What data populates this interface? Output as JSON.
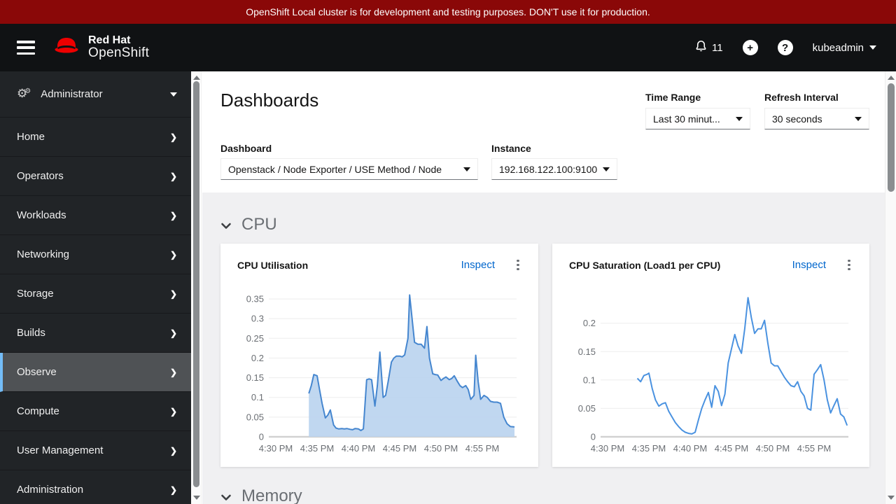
{
  "banner": {
    "text": "OpenShift Local cluster is for development and testing purposes. DON'T use it for production."
  },
  "header": {
    "brand_line1": "Red Hat",
    "brand_line2": "OpenShift",
    "notification_count": "11",
    "plus_glyph": "+",
    "help_glyph": "?",
    "username": "kubeadmin"
  },
  "sidebar": {
    "perspective": {
      "label": "Administrator"
    },
    "items": [
      {
        "label": "Home"
      },
      {
        "label": "Operators"
      },
      {
        "label": "Workloads"
      },
      {
        "label": "Networking"
      },
      {
        "label": "Storage"
      },
      {
        "label": "Builds"
      },
      {
        "label": "Observe",
        "active": true
      },
      {
        "label": "Compute"
      },
      {
        "label": "User Management"
      },
      {
        "label": "Administration"
      }
    ]
  },
  "page": {
    "title": "Dashboards",
    "inspect_label": "Inspect",
    "filters": {
      "time_range_label": "Time Range",
      "time_range_value": "Last 30 minut...",
      "refresh_label": "Refresh Interval",
      "refresh_value": "30 seconds",
      "dashboard_label": "Dashboard",
      "dashboard_value": "Openstack / Node Exporter / USE Method / Node",
      "instance_label": "Instance",
      "instance_value": "192.168.122.100:9100"
    },
    "sections": [
      {
        "title": "CPU"
      },
      {
        "title": "Memory"
      }
    ]
  },
  "chart_data": [
    {
      "type": "area",
      "title": "CPU Utilisation",
      "x_minutes_from": "4:30 PM",
      "x_ticks": [
        "4:30 PM",
        "4:35 PM",
        "4:40 PM",
        "4:45 PM",
        "4:50 PM",
        "4:55 PM"
      ],
      "y_ticks": [
        {
          "v": 0,
          "t": "0"
        },
        {
          "v": 0.05,
          "t": "0.05"
        },
        {
          "v": 0.1,
          "t": "0.1"
        },
        {
          "v": 0.15,
          "t": "0.15"
        },
        {
          "v": 0.2,
          "t": "0.2"
        },
        {
          "v": 0.25,
          "t": "0.25"
        },
        {
          "v": 0.3,
          "t": "0.3"
        },
        {
          "v": 0.35,
          "t": "0.35"
        }
      ],
      "ymax": 0.375,
      "stroke": "#4586cf",
      "fill": "#b9d3ee",
      "series": [
        {
          "name": "cpu-utilisation",
          "points": [
            [
              4.0,
              0.11
            ],
            [
              4.3,
              0.13
            ],
            [
              4.6,
              0.158
            ],
            [
              5.0,
              0.155
            ],
            [
              5.3,
              0.12
            ],
            [
              5.6,
              0.085
            ],
            [
              6.0,
              0.048
            ],
            [
              6.3,
              0.055
            ],
            [
              6.6,
              0.068
            ],
            [
              7.0,
              0.03
            ],
            [
              7.3,
              0.022
            ],
            [
              7.6,
              0.02
            ],
            [
              8.0,
              0.021
            ],
            [
              8.3,
              0.02
            ],
            [
              8.6,
              0.021
            ],
            [
              9.0,
              0.019
            ],
            [
              9.3,
              0.018
            ],
            [
              9.6,
              0.021
            ],
            [
              10.0,
              0.02
            ],
            [
              10.3,
              0.016
            ],
            [
              10.6,
              0.02
            ],
            [
              11.0,
              0.145
            ],
            [
              11.3,
              0.147
            ],
            [
              11.6,
              0.145
            ],
            [
              12.0,
              0.078
            ],
            [
              12.3,
              0.13
            ],
            [
              12.6,
              0.215
            ],
            [
              13.0,
              0.1
            ],
            [
              13.3,
              0.105
            ],
            [
              13.6,
              0.14
            ],
            [
              14.0,
              0.19
            ],
            [
              14.3,
              0.2
            ],
            [
              14.6,
              0.205
            ],
            [
              15.0,
              0.205
            ],
            [
              15.3,
              0.203
            ],
            [
              15.6,
              0.208
            ],
            [
              16.0,
              0.25
            ],
            [
              16.2,
              0.36
            ],
            [
              16.5,
              0.3
            ],
            [
              16.8,
              0.24
            ],
            [
              17.2,
              0.235
            ],
            [
              17.6,
              0.235
            ],
            [
              18.0,
              0.225
            ],
            [
              18.3,
              0.28
            ],
            [
              18.6,
              0.2
            ],
            [
              19.0,
              0.16
            ],
            [
              19.3,
              0.158
            ],
            [
              19.6,
              0.157
            ],
            [
              20.0,
              0.143
            ],
            [
              20.3,
              0.148
            ],
            [
              20.6,
              0.152
            ],
            [
              21.0,
              0.145
            ],
            [
              21.3,
              0.148
            ],
            [
              21.6,
              0.155
            ],
            [
              22.0,
              0.14
            ],
            [
              22.3,
              0.13
            ],
            [
              22.6,
              0.125
            ],
            [
              23.0,
              0.13
            ],
            [
              23.3,
              0.12
            ],
            [
              23.6,
              0.095
            ],
            [
              24.0,
              0.105
            ],
            [
              24.2,
              0.207
            ],
            [
              24.5,
              0.14
            ],
            [
              24.8,
              0.095
            ],
            [
              25.2,
              0.105
            ],
            [
              25.6,
              0.1
            ],
            [
              26.0,
              0.09
            ],
            [
              26.4,
              0.088
            ],
            [
              26.8,
              0.088
            ],
            [
              27.2,
              0.085
            ],
            [
              27.6,
              0.05
            ],
            [
              28.0,
              0.033
            ],
            [
              28.4,
              0.026
            ],
            [
              28.9,
              0.025
            ]
          ]
        }
      ]
    },
    {
      "type": "line",
      "title": "CPU Saturation (Load1 per CPU)",
      "x_minutes_from": "4:30 PM",
      "x_ticks": [
        "4:30 PM",
        "4:35 PM",
        "4:40 PM",
        "4:45 PM",
        "4:50 PM",
        "4:55 PM"
      ],
      "y_ticks": [
        {
          "v": 0,
          "t": "0"
        },
        {
          "v": 0.05,
          "t": "0.05"
        },
        {
          "v": 0.1,
          "t": "0.1"
        },
        {
          "v": 0.15,
          "t": "0.15"
        },
        {
          "v": 0.2,
          "t": "0.2"
        }
      ],
      "ymax": 0.26,
      "stroke": "#4a92e0",
      "fill": "none",
      "series": [
        {
          "name": "cpu-saturation-load1-per-cpu",
          "points": [
            [
              3.6,
              0.103
            ],
            [
              4.0,
              0.097
            ],
            [
              4.4,
              0.108
            ],
            [
              4.8,
              0.11
            ],
            [
              5.0,
              0.112
            ],
            [
              5.4,
              0.085
            ],
            [
              5.8,
              0.065
            ],
            [
              6.2,
              0.054
            ],
            [
              6.6,
              0.058
            ],
            [
              7.0,
              0.06
            ],
            [
              7.4,
              0.045
            ],
            [
              7.8,
              0.035
            ],
            [
              8.2,
              0.025
            ],
            [
              8.6,
              0.018
            ],
            [
              9.0,
              0.012
            ],
            [
              9.4,
              0.008
            ],
            [
              9.8,
              0.006
            ],
            [
              10.2,
              0.005
            ],
            [
              10.6,
              0.008
            ],
            [
              11.0,
              0.03
            ],
            [
              11.4,
              0.05
            ],
            [
              11.8,
              0.065
            ],
            [
              12.2,
              0.078
            ],
            [
              12.6,
              0.052
            ],
            [
              13.0,
              0.09
            ],
            [
              13.4,
              0.08
            ],
            [
              13.8,
              0.055
            ],
            [
              14.2,
              0.075
            ],
            [
              14.6,
              0.13
            ],
            [
              15.0,
              0.155
            ],
            [
              15.4,
              0.18
            ],
            [
              15.8,
              0.16
            ],
            [
              16.2,
              0.147
            ],
            [
              16.6,
              0.19
            ],
            [
              17.0,
              0.245
            ],
            [
              17.4,
              0.21
            ],
            [
              17.8,
              0.182
            ],
            [
              18.2,
              0.19
            ],
            [
              18.6,
              0.19
            ],
            [
              19.0,
              0.205
            ],
            [
              19.4,
              0.165
            ],
            [
              19.8,
              0.13
            ],
            [
              20.2,
              0.125
            ],
            [
              20.6,
              0.125
            ],
            [
              21.0,
              0.115
            ],
            [
              21.4,
              0.105
            ],
            [
              21.8,
              0.097
            ],
            [
              22.2,
              0.09
            ],
            [
              22.6,
              0.088
            ],
            [
              23.0,
              0.097
            ],
            [
              23.4,
              0.08
            ],
            [
              23.8,
              0.072
            ],
            [
              24.2,
              0.05
            ],
            [
              24.6,
              0.047
            ],
            [
              25.0,
              0.11
            ],
            [
              25.4,
              0.118
            ],
            [
              25.8,
              0.127
            ],
            [
              26.2,
              0.1
            ],
            [
              26.6,
              0.065
            ],
            [
              27.0,
              0.042
            ],
            [
              27.4,
              0.055
            ],
            [
              27.8,
              0.067
            ],
            [
              28.2,
              0.04
            ],
            [
              28.6,
              0.035
            ],
            [
              29.0,
              0.02
            ]
          ]
        }
      ]
    }
  ],
  "colors": {
    "banner_bg": "#8a0808",
    "header_bg": "#101214",
    "sidebar_bg": "#212427",
    "sidebar_active_bg": "#4f5255",
    "sidebar_active_border": "#73bcf7",
    "brand_red": "#ee0000",
    "link": "#0066cc",
    "body_bg": "#f0f0f2",
    "text_muted": "#6a6e73",
    "gridline": "#ededed",
    "axis": "#d2d2d2"
  }
}
